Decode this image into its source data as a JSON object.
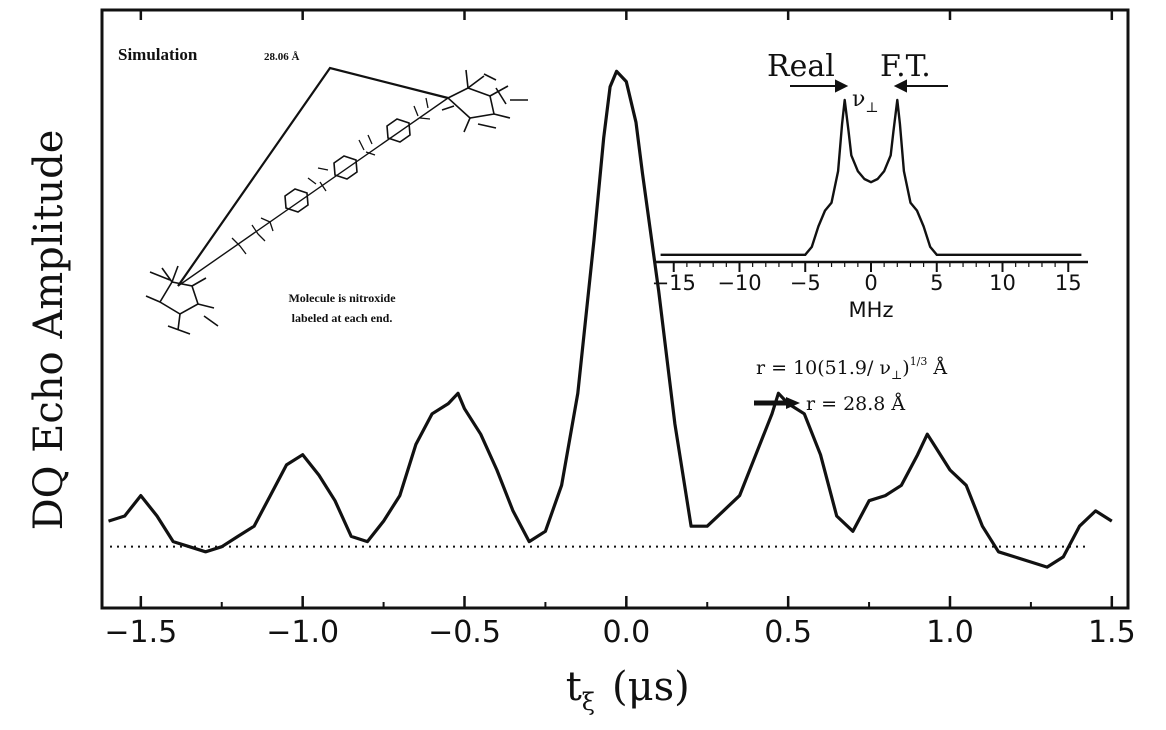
{
  "chart_data": [
    {
      "type": "line",
      "title": "",
      "xlabel": "t",
      "xlabel_sub": "ξ",
      "xlabel_unit": "(μs)",
      "ylabel": "DQ Echo Amplitude",
      "xlim": [
        -1.62,
        1.55
      ],
      "ylim": [
        -0.12,
        1.05
      ],
      "x_ticks": [
        -1.5,
        -1.0,
        -0.5,
        0.0,
        0.5,
        1.0,
        1.5
      ],
      "x_tick_labels": [
        "−1.5",
        "−1.0",
        "−0.5",
        "0.0",
        "0.5",
        "1.0",
        "1.5"
      ],
      "grid": false,
      "baseline": {
        "y": 0.0,
        "style": "dotted"
      },
      "series": [
        {
          "x": [
            -1.6,
            -1.55,
            -1.5,
            -1.45,
            -1.4,
            -1.35,
            -1.3,
            -1.25,
            -1.2,
            -1.15,
            -1.1,
            -1.05,
            -1.0,
            -0.95,
            -0.9,
            -0.85,
            -0.8,
            -0.75,
            -0.7,
            -0.65,
            -0.6,
            -0.55,
            -0.52,
            -0.5,
            -0.45,
            -0.4,
            -0.35,
            -0.3,
            -0.25,
            -0.2,
            -0.15,
            -0.1,
            -0.07,
            -0.05,
            -0.03,
            0.0,
            0.03,
            0.05,
            0.1,
            0.15,
            0.2,
            0.25,
            0.3,
            0.35,
            0.4,
            0.45,
            0.47,
            0.5,
            0.55,
            0.6,
            0.65,
            0.7,
            0.75,
            0.8,
            0.85,
            0.9,
            0.93,
            0.95,
            1.0,
            1.05,
            1.1,
            1.15,
            1.2,
            1.25,
            1.3,
            1.35,
            1.4,
            1.45,
            1.5
          ],
          "y": [
            0.05,
            0.06,
            0.1,
            0.06,
            0.01,
            0.0,
            -0.01,
            0.0,
            0.02,
            0.04,
            0.1,
            0.16,
            0.18,
            0.14,
            0.09,
            0.02,
            0.01,
            0.05,
            0.1,
            0.2,
            0.26,
            0.28,
            0.3,
            0.27,
            0.22,
            0.15,
            0.07,
            0.01,
            0.03,
            0.12,
            0.3,
            0.6,
            0.8,
            0.9,
            0.93,
            0.91,
            0.83,
            0.73,
            0.5,
            0.24,
            0.04,
            0.04,
            0.07,
            0.1,
            0.18,
            0.26,
            0.3,
            0.28,
            0.26,
            0.18,
            0.06,
            0.03,
            0.09,
            0.1,
            0.12,
            0.18,
            0.22,
            0.2,
            0.15,
            0.12,
            0.04,
            -0.01,
            -0.02,
            -0.03,
            -0.04,
            -0.02,
            0.04,
            0.07,
            0.05
          ]
        }
      ],
      "annotations": {
        "sim_label": "Simulation",
        "distance_label": "28.06 Å",
        "molecule_line1": "Molecule is nitroxide",
        "molecule_line2": "labeled at each end.",
        "formula_a": "r = 10(51.9/ ν",
        "formula_sub": "⊥",
        "formula_sup": "1/3",
        "formula_b": " Å",
        "result": "r = 28.8 Å"
      }
    },
    {
      "type": "line",
      "title": "Real F.T.",
      "title_part1": "Real",
      "title_part2": "F.T.",
      "xlabel": "MHz",
      "xlim": [
        -16.5,
        16.5
      ],
      "x_ticks": [
        -15,
        -10,
        -5,
        0,
        5,
        10,
        15
      ],
      "x_tick_labels": [
        "−15",
        "−10",
        "−5",
        "0",
        "5",
        "10",
        "15"
      ],
      "peak_label": "ν",
      "peak_label_sub": "⊥",
      "grid": false,
      "series": [
        {
          "x": [
            -16,
            -5,
            -4.5,
            -4,
            -3.5,
            -3,
            -2.5,
            -2.2,
            -2.0,
            -1.7,
            -1.5,
            -1,
            -0.5,
            0,
            0.5,
            1,
            1.5,
            1.7,
            2.0,
            2.2,
            2.5,
            3,
            3.5,
            4,
            4.5,
            5,
            16
          ],
          "y": [
            0.02,
            0.02,
            0.07,
            0.2,
            0.3,
            0.35,
            0.55,
            0.85,
            1.0,
            0.8,
            0.65,
            0.55,
            0.5,
            0.48,
            0.5,
            0.55,
            0.65,
            0.8,
            1.0,
            0.85,
            0.55,
            0.35,
            0.3,
            0.2,
            0.07,
            0.02,
            0.02
          ]
        }
      ]
    }
  ]
}
